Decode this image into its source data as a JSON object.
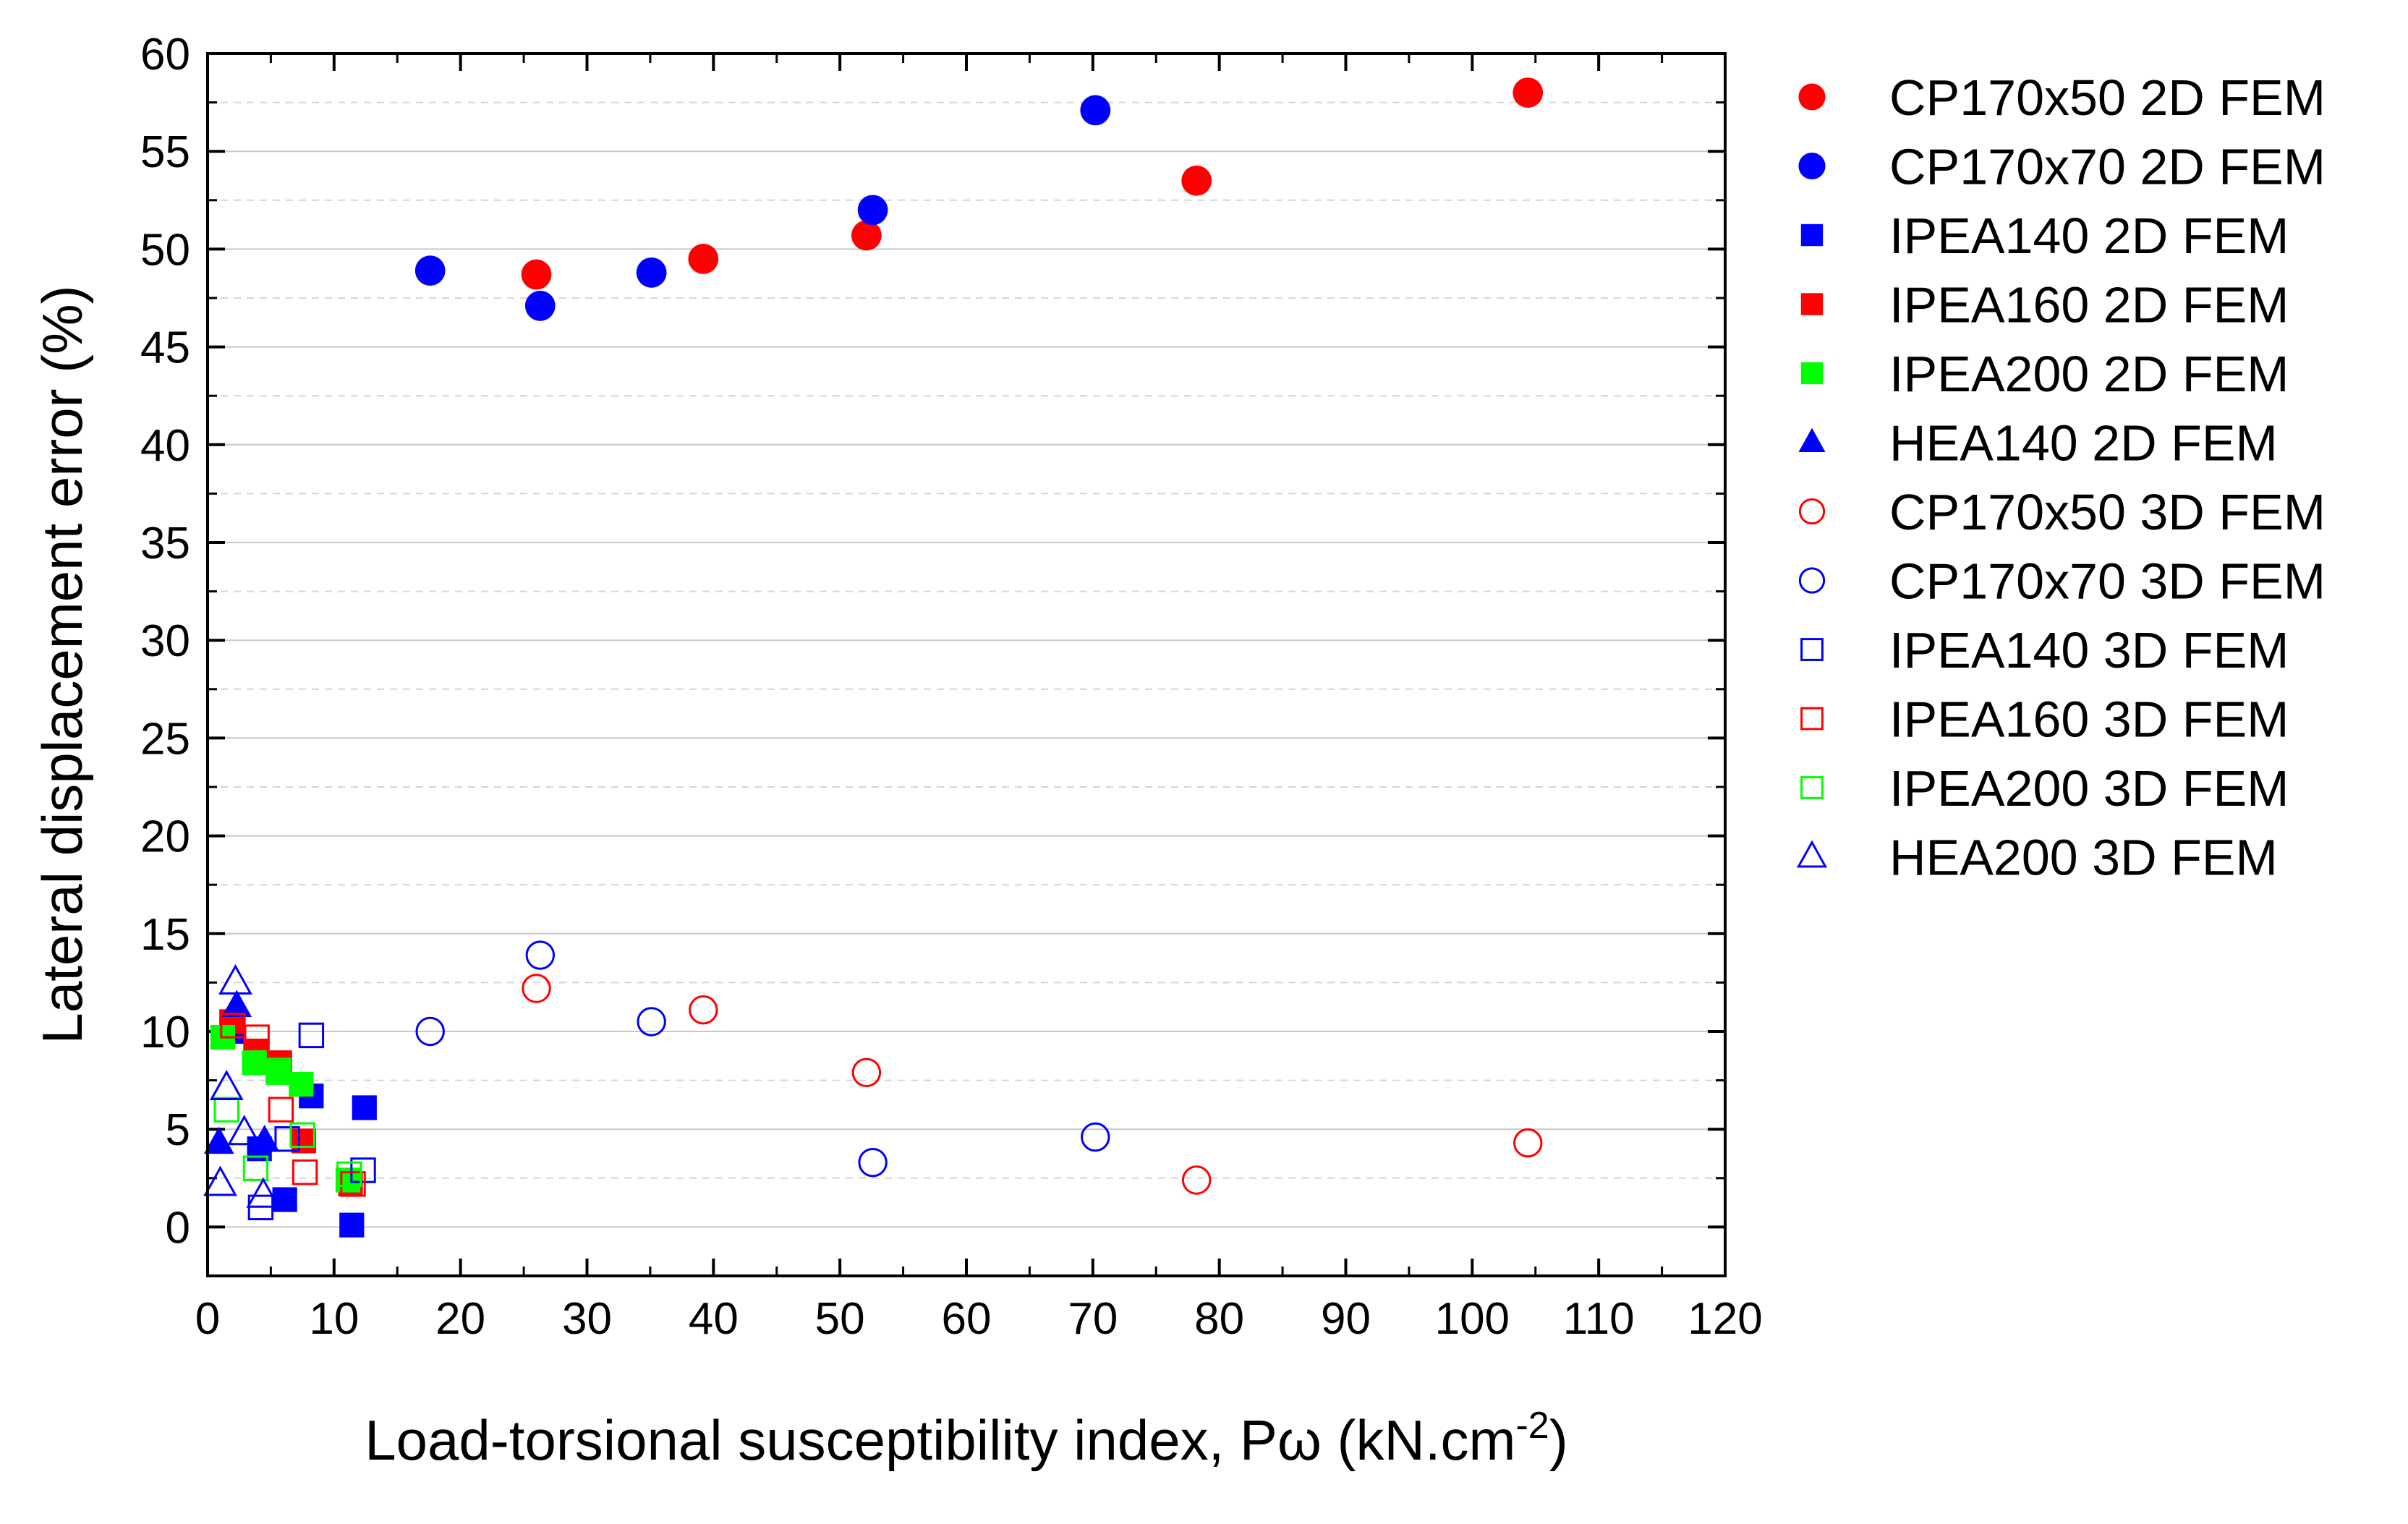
{
  "chart_data": {
    "type": "scatter",
    "title": "",
    "xlabel": "Load-torsional susceptibility index, Pω (kN.cm",
    "xlabel_sup": "-2",
    "xlabel_end": ")",
    "ylabel": "Lateral displacement error (%)",
    "xlim": [
      0,
      120
    ],
    "ylim": [
      -2.5,
      60
    ],
    "xticks": [
      0,
      10,
      20,
      30,
      40,
      50,
      60,
      70,
      80,
      90,
      100,
      110,
      120
    ],
    "yticks": [
      0,
      5,
      10,
      15,
      20,
      25,
      30,
      35,
      40,
      45,
      50,
      55,
      60
    ],
    "grid": "horizontal, dashed minor",
    "legend_position": "right, outside",
    "series": [
      {
        "name": "CP170x50 2D FEM",
        "marker": "circle",
        "filled": true,
        "color": "#ff0000",
        "points": [
          [
            26.0,
            48.7
          ],
          [
            39.2,
            49.5
          ],
          [
            52.1,
            50.7
          ],
          [
            78.2,
            53.5
          ],
          [
            104.4,
            58.0
          ]
        ]
      },
      {
        "name": "CP170x70 2D FEM",
        "marker": "circle",
        "filled": true,
        "color": "#0000ff",
        "points": [
          [
            17.6,
            48.9
          ],
          [
            26.3,
            47.1
          ],
          [
            35.1,
            48.8
          ],
          [
            52.6,
            52.0
          ],
          [
            70.2,
            57.1
          ]
        ]
      },
      {
        "name": "IPEA140 2D FEM",
        "marker": "square",
        "filled": true,
        "color": "#0000ff",
        "points": [
          [
            2.0,
            10.0
          ],
          [
            4.1,
            4.0
          ],
          [
            6.1,
            1.4
          ],
          [
            8.2,
            6.7
          ],
          [
            11.4,
            0.1
          ],
          [
            12.4,
            6.1
          ]
        ]
      },
      {
        "name": "IPEA160 2D FEM",
        "marker": "square",
        "filled": true,
        "color": "#ff0000",
        "points": [
          [
            1.9,
            10.5
          ],
          [
            3.8,
            9.0
          ],
          [
            5.7,
            8.4
          ],
          [
            7.6,
            4.4
          ],
          [
            11.3,
            2.2
          ]
        ]
      },
      {
        "name": "IPEA200 2D FEM",
        "marker": "square",
        "filled": true,
        "color": "#00ff00",
        "points": [
          [
            1.2,
            9.7
          ],
          [
            3.7,
            8.4
          ],
          [
            5.6,
            7.9
          ],
          [
            7.4,
            7.3
          ],
          [
            11.1,
            2.4
          ]
        ]
      },
      {
        "name": "HEA140 2D FEM",
        "marker": "triangle",
        "filled": true,
        "color": "#0000ff",
        "points": [
          [
            0.9,
            4.3
          ],
          [
            2.3,
            11.3
          ],
          [
            4.5,
            4.4
          ]
        ]
      },
      {
        "name": "CP170x50 3D FEM",
        "marker": "circle",
        "filled": false,
        "color": "#ff0000",
        "points": [
          [
            26.0,
            12.2
          ],
          [
            39.2,
            11.1
          ],
          [
            52.1,
            7.9
          ],
          [
            78.2,
            2.4
          ],
          [
            104.4,
            4.3
          ]
        ]
      },
      {
        "name": "CP170x70 3D FEM",
        "marker": "circle",
        "filled": false,
        "color": "#0000ff",
        "points": [
          [
            17.6,
            10.0
          ],
          [
            26.3,
            13.9
          ],
          [
            35.1,
            10.5
          ],
          [
            52.6,
            3.3
          ],
          [
            70.2,
            4.6
          ]
        ]
      },
      {
        "name": "IPEA140 3D FEM",
        "marker": "square",
        "filled": false,
        "color": "#0000ff",
        "points": [
          [
            4.2,
            1.0
          ],
          [
            6.3,
            4.5
          ],
          [
            8.2,
            9.8
          ],
          [
            12.3,
            2.9
          ]
        ]
      },
      {
        "name": "IPEA160 3D FEM",
        "marker": "square",
        "filled": false,
        "color": "#ff0000",
        "points": [
          [
            2.0,
            10.3
          ],
          [
            3.9,
            9.7
          ],
          [
            5.8,
            6.0
          ],
          [
            7.7,
            2.8
          ],
          [
            11.5,
            2.2
          ]
        ]
      },
      {
        "name": "IPEA200 3D FEM",
        "marker": "square",
        "filled": false,
        "color": "#00ff00",
        "points": [
          [
            1.5,
            6.0
          ],
          [
            3.8,
            3.0
          ],
          [
            5.6,
            8.0
          ],
          [
            7.5,
            4.7
          ],
          [
            11.2,
            2.7
          ]
        ]
      },
      {
        "name": "HEA200 3D FEM",
        "marker": "triangle",
        "filled": false,
        "color": "#0000ff",
        "points": [
          [
            1.0,
            2.2
          ],
          [
            1.5,
            7.1
          ],
          [
            2.2,
            12.5
          ],
          [
            2.9,
            4.8
          ],
          [
            4.4,
            1.6
          ]
        ]
      }
    ]
  }
}
